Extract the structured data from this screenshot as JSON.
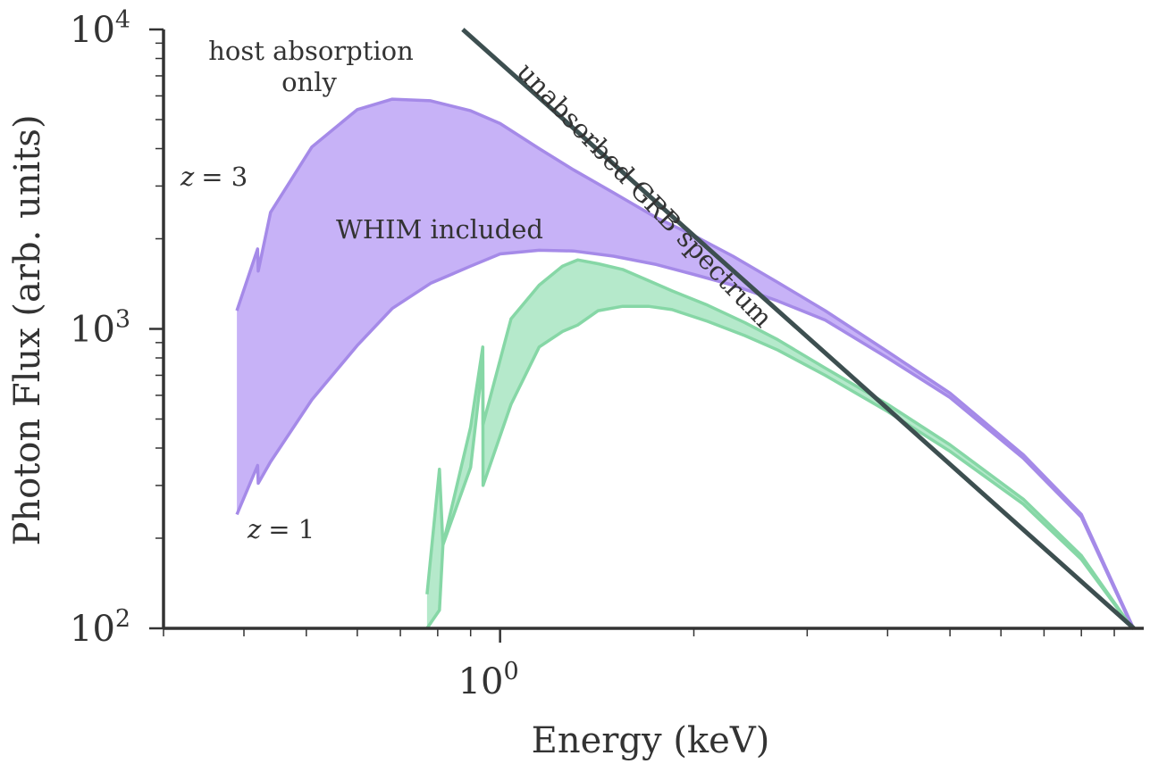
{
  "chart_data": {
    "type": "area",
    "xlabel": "Energy (keV)",
    "ylabel": "Photon Flux (arb. units)",
    "x_scale": "log",
    "y_scale": "log",
    "xlim": [
      0.3,
      10
    ],
    "ylim": [
      100,
      10000
    ],
    "x_ticks": [
      {
        "value": 1,
        "label": "10",
        "exp": "0"
      }
    ],
    "y_ticks": [
      {
        "value": 100,
        "label": "10",
        "exp": "2"
      },
      {
        "value": 1000,
        "label": "10",
        "exp": "3"
      },
      {
        "value": 10000,
        "label": "10",
        "exp": "4"
      }
    ],
    "grid": false,
    "colors": {
      "z3_fill": "#c4aef7",
      "z3_edge": "#a58ae8",
      "z1_fill": "#b1e8c8",
      "z1_edge": "#86d7a6",
      "grb_line": "#3d4f50",
      "axis": "#333333"
    },
    "annotations": {
      "host_line1": "host absorption",
      "host_line2": "only",
      "whim": "WHIM included",
      "grb": "unabsorbed GRB spectrum",
      "z3_var": "z",
      "z3_rest": "= 3",
      "z1_var": "z",
      "z1_rest": "= 1"
    },
    "series": [
      {
        "name": "unabsorbed GRB spectrum",
        "kind": "line",
        "x": [
          0.875,
          9.65
        ],
        "y": [
          10000,
          100
        ]
      },
      {
        "kind": "band",
        "x": [
          0.39,
          0.39,
          0.42,
          0.421,
          0.44,
          0.51,
          0.6,
          0.68,
          0.78,
          0.9,
          1.0,
          1.15,
          1.3,
          1.5,
          1.75,
          2.0,
          2.3,
          2.7,
          3.2,
          4.0,
          5.0,
          6.5,
          8.0,
          9.6
        ],
        "y_upper": [
          1150,
          1150,
          1850,
          1560,
          2450,
          4050,
          5400,
          5850,
          5780,
          5350,
          4850,
          4000,
          3400,
          2850,
          2350,
          2050,
          1750,
          1430,
          1150,
          840,
          610,
          380,
          240,
          102
        ],
        "y_lower": [
          240,
          240,
          350,
          305,
          360,
          580,
          880,
          1170,
          1420,
          1620,
          1780,
          1830,
          1820,
          1750,
          1640,
          1520,
          1400,
          1240,
          1070,
          800,
          590,
          370,
          235,
          101
        ]
      },
      {
        "kind": "band",
        "x": [
          0.77,
          0.805,
          0.8051,
          0.815,
          0.8151,
          0.9,
          0.94,
          0.941,
          1.04,
          1.15,
          1.25,
          1.32,
          1.42,
          1.55,
          1.7,
          1.85,
          2.1,
          2.4,
          2.7,
          3.2,
          4.0,
          5.0,
          6.5,
          8.0,
          9.6
        ],
        "y_upper": [
          130,
          340,
          340,
          190,
          190,
          470,
          870,
          480,
          1080,
          1400,
          1620,
          1700,
          1650,
          1580,
          1450,
          1340,
          1200,
          1050,
          920,
          740,
          560,
          410,
          270,
          175,
          100
        ],
        "y_lower": [
          100,
          115,
          115,
          190,
          190,
          345,
          780,
          300,
          560,
          870,
          980,
          1030,
          1150,
          1190,
          1190,
          1160,
          1060,
          950,
          850,
          700,
          530,
          390,
          260,
          170,
          100
        ]
      }
    ]
  }
}
